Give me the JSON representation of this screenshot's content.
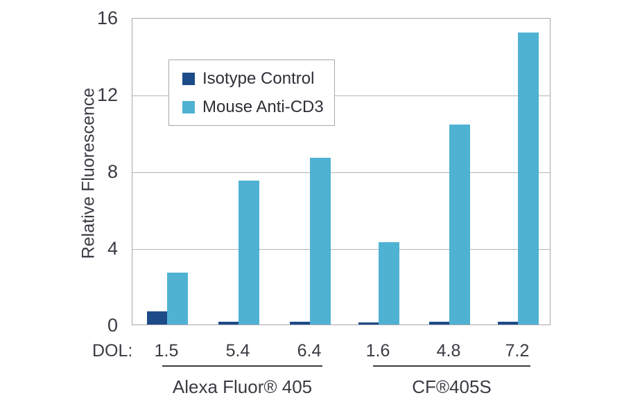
{
  "chart_data": {
    "type": "bar",
    "title": "",
    "ylabel": "Relative Fluorescence",
    "xlabel_prefix": "DOL:",
    "ylim": [
      0,
      16
    ],
    "yticks": [
      0,
      4,
      8,
      12,
      16
    ],
    "grid": true,
    "legend_position": "upper-left-inside",
    "categories": [
      "1.5",
      "5.4",
      "6.4",
      "1.6",
      "4.8",
      "7.2"
    ],
    "series": [
      {
        "name": "Isotype Control",
        "color": "#1d4b87",
        "values": [
          0.7,
          0.15,
          0.15,
          0.1,
          0.15,
          0.15
        ]
      },
      {
        "name": "Mouse Anti-CD3",
        "color": "#4fb2d3",
        "values": [
          2.7,
          7.5,
          8.7,
          4.3,
          10.4,
          15.2
        ]
      }
    ],
    "groups": [
      {
        "label": "Alexa Fluor® 405",
        "categories": [
          "1.5",
          "5.4",
          "6.4"
        ]
      },
      {
        "label": "CF®405S",
        "categories": [
          "1.6",
          "4.8",
          "7.2"
        ]
      }
    ]
  },
  "colors": {
    "grid": "#b4b4b8",
    "border": "#a8a8ad",
    "text": "#3a3a44"
  }
}
